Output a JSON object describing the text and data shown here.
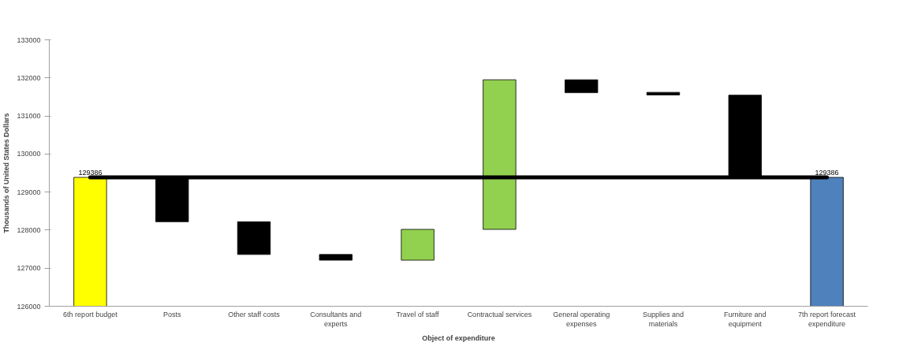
{
  "chart_data": {
    "type": "bar",
    "xlabel": "Object of expenditure",
    "ylabel": "Thousands of United States Dollars",
    "categories": [
      "6th report budget",
      "Posts",
      "Other staff costs",
      "Consultants and experts",
      "Travel of staff",
      "Contractual services",
      "General operating expenses",
      "Supplies and materials",
      "Furniture and equipment",
      "7th report forecast expenditure"
    ],
    "base": [
      126000,
      128220,
      127360,
      127210,
      127210,
      128020,
      131610,
      131550,
      129386,
      126000
    ],
    "values": [
      3386,
      1170,
      860,
      150,
      810,
      3930,
      340,
      70,
      2160,
      3386
    ],
    "colors": [
      "#ffff00",
      "#000000",
      "#000000",
      "#000000",
      "#92d050",
      "#92d050",
      "#000000",
      "#000000",
      "#000000",
      "#4f81bd"
    ],
    "value_labels": [
      "129386",
      null,
      null,
      null,
      null,
      null,
      null,
      null,
      null,
      "129386"
    ],
    "ref_lines": [
      {
        "axis": "y",
        "value": 129386,
        "color": "#000000"
      }
    ],
    "ylim": [
      126000,
      133000
    ],
    "yticks": [
      126000,
      127000,
      128000,
      129000,
      130000,
      131000,
      132000,
      133000
    ],
    "grid": false
  }
}
